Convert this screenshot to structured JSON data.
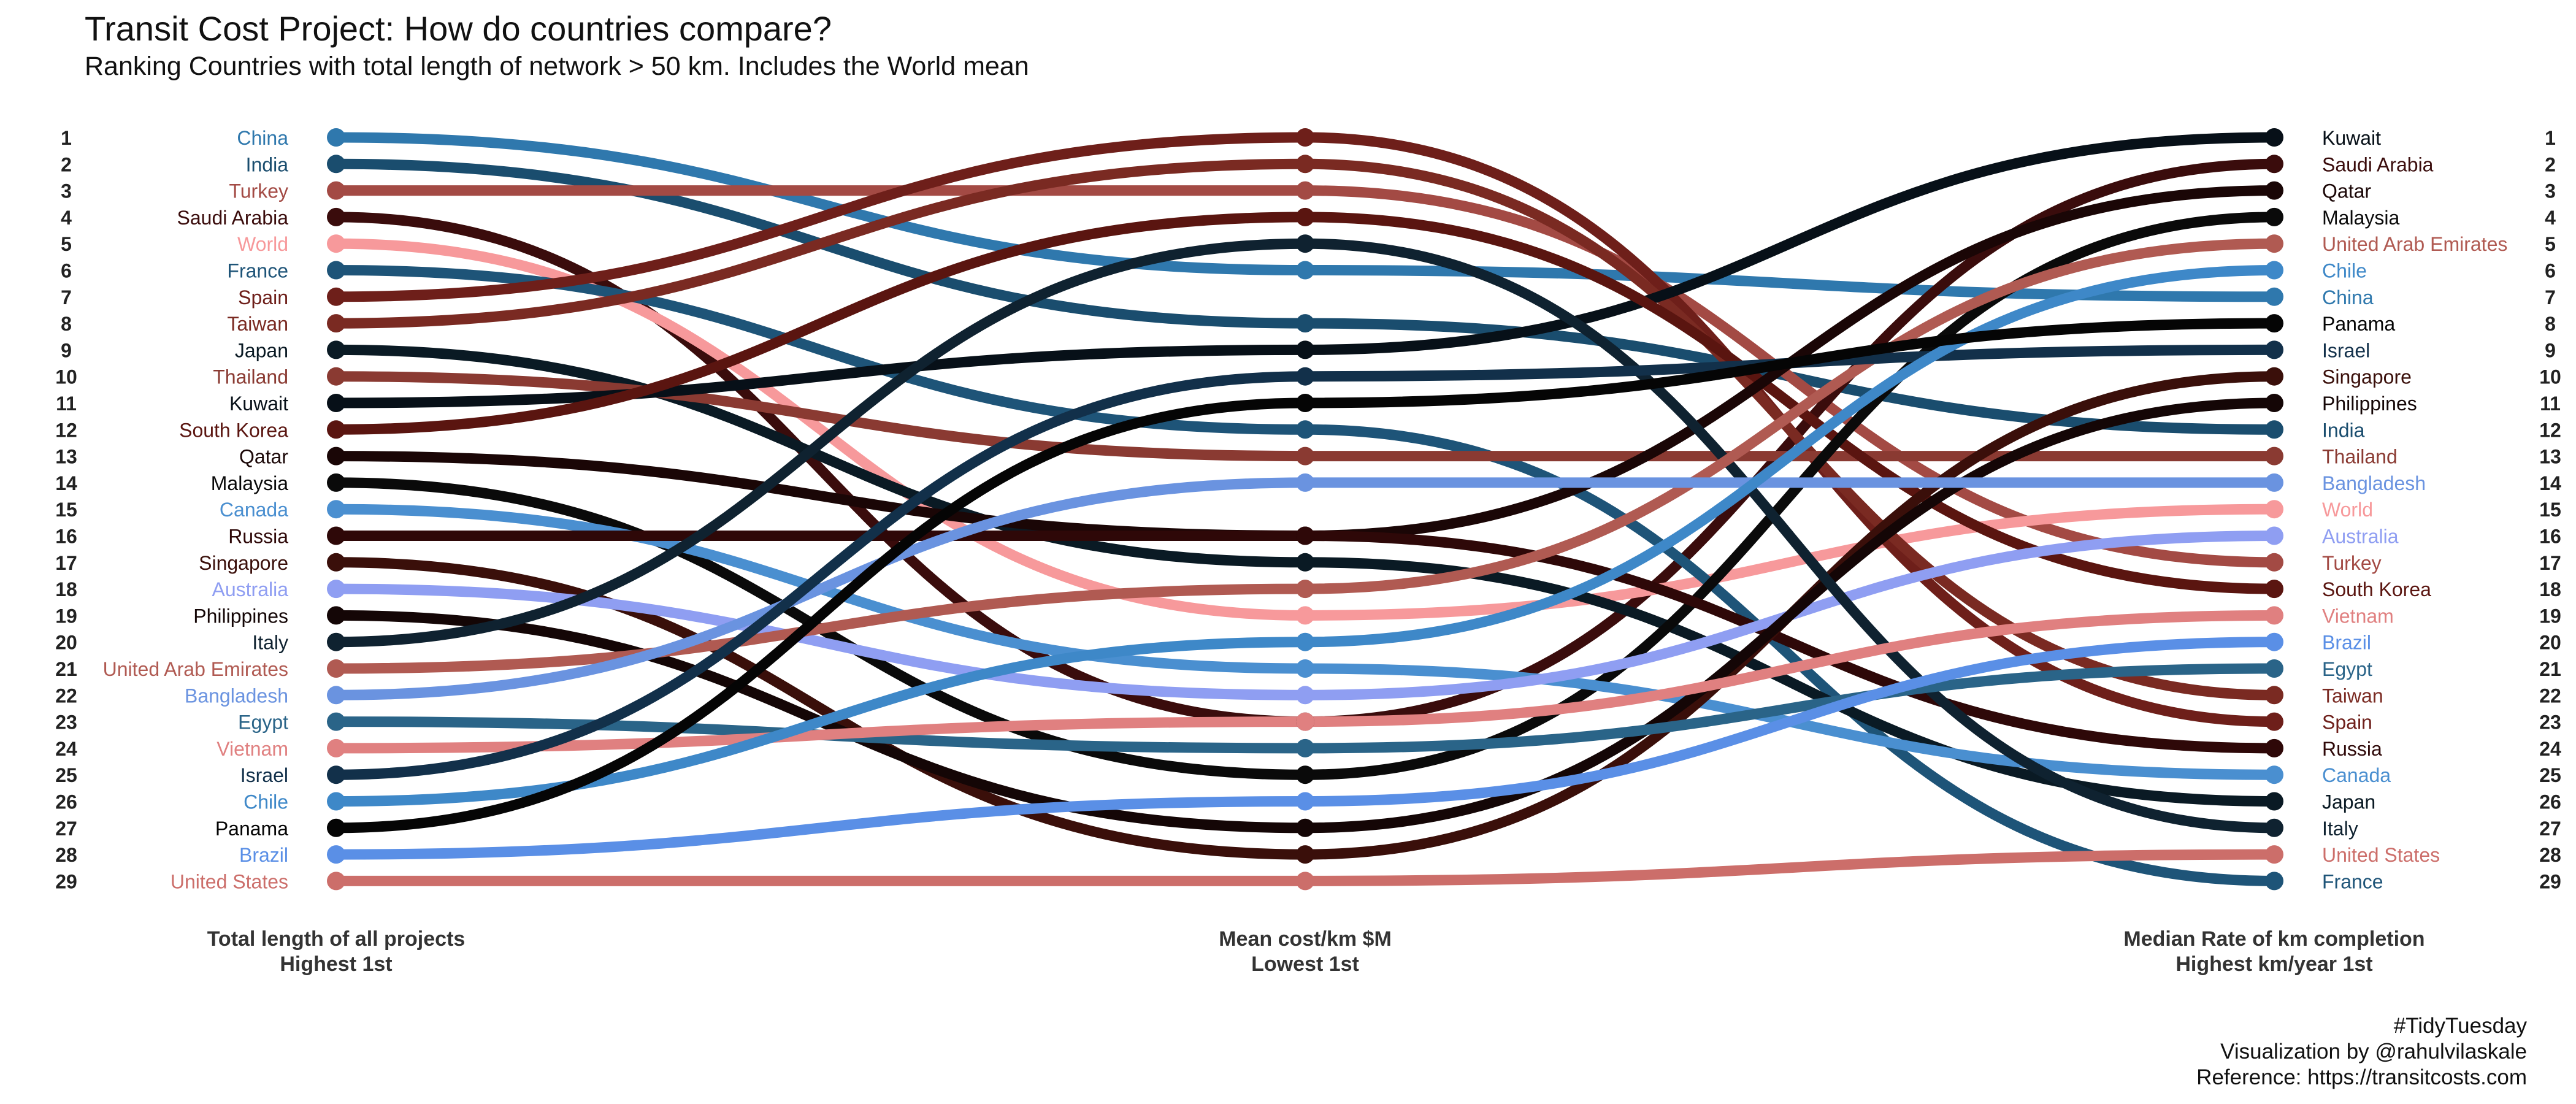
{
  "title": "Transit Cost Project: How do countries compare?",
  "subtitle": "Ranking Countries with total length of network > 50 km. Includes the World mean",
  "caption": [
    "#TidyTuesday",
    "Visualization by @rahulvilaskale",
    "Reference: https://transitcosts.com"
  ],
  "chart_data": {
    "type": "bump",
    "axes": [
      {
        "label": "Total length of all projects",
        "sublabel": "Highest 1st"
      },
      {
        "label": "Mean cost/km $M",
        "sublabel": "Lowest 1st"
      },
      {
        "label": "Median Rate of km completion",
        "sublabel": "Highest km/year 1st"
      }
    ],
    "rank_numbers": [
      1,
      2,
      3,
      4,
      5,
      6,
      7,
      8,
      9,
      10,
      11,
      12,
      13,
      14,
      15,
      16,
      17,
      18,
      19,
      20,
      21,
      22,
      23,
      24,
      25,
      26,
      27,
      28,
      29
    ],
    "series": [
      {
        "name": "China",
        "color": "#2f78ad",
        "ranks": [
          1,
          6,
          7
        ]
      },
      {
        "name": "India",
        "color": "#1a4d6e",
        "ranks": [
          2,
          8,
          12
        ]
      },
      {
        "name": "Turkey",
        "color": "#a34a44",
        "ranks": [
          3,
          3,
          17
        ]
      },
      {
        "name": "Saudi Arabia",
        "color": "#3a0c0c",
        "ranks": [
          4,
          23,
          2
        ]
      },
      {
        "name": "World",
        "color": "#f7999b",
        "ranks": [
          5,
          19,
          15
        ]
      },
      {
        "name": "France",
        "color": "#1e5478",
        "ranks": [
          6,
          12,
          29
        ]
      },
      {
        "name": "Spain",
        "color": "#6e1f1a",
        "ranks": [
          7,
          1,
          23
        ]
      },
      {
        "name": "Taiwan",
        "color": "#7a2a22",
        "ranks": [
          8,
          2,
          22
        ]
      },
      {
        "name": "Japan",
        "color": "#0a1a24",
        "ranks": [
          9,
          17,
          26
        ]
      },
      {
        "name": "Thailand",
        "color": "#8a3a32",
        "ranks": [
          10,
          13,
          13
        ]
      },
      {
        "name": "Kuwait",
        "color": "#071018",
        "ranks": [
          11,
          9,
          1
        ]
      },
      {
        "name": "South Korea",
        "color": "#5a1510",
        "ranks": [
          12,
          4,
          18
        ]
      },
      {
        "name": "Qatar",
        "color": "#1a0606",
        "ranks": [
          13,
          16,
          3
        ]
      },
      {
        "name": "Malaysia",
        "color": "#0a0a0a",
        "ranks": [
          14,
          25,
          4
        ]
      },
      {
        "name": "Canada",
        "color": "#4a8fd0",
        "ranks": [
          15,
          21,
          25
        ]
      },
      {
        "name": "Russia",
        "color": "#2e0808",
        "ranks": [
          16,
          16,
          24
        ]
      },
      {
        "name": "Singapore",
        "color": "#3a0f0a",
        "ranks": [
          17,
          28,
          10
        ]
      },
      {
        "name": "Australia",
        "color": "#8f9ef2",
        "ranks": [
          18,
          22,
          16
        ]
      },
      {
        "name": "Philippines",
        "color": "#140606",
        "ranks": [
          19,
          27,
          11
        ]
      },
      {
        "name": "Italy",
        "color": "#0f2230",
        "ranks": [
          20,
          5,
          27
        ]
      },
      {
        "name": "United Arab Emirates",
        "color": "#b05a52",
        "ranks": [
          21,
          18,
          5
        ]
      },
      {
        "name": "Bangladesh",
        "color": "#6a93e0",
        "ranks": [
          22,
          14,
          14
        ]
      },
      {
        "name": "Egypt",
        "color": "#2a6488",
        "ranks": [
          23,
          24,
          21
        ]
      },
      {
        "name": "Vietnam",
        "color": "#e08080",
        "ranks": [
          24,
          23,
          19
        ]
      },
      {
        "name": "Israel",
        "color": "#12304a",
        "ranks": [
          25,
          10,
          9
        ]
      },
      {
        "name": "Chile",
        "color": "#3e88c8",
        "ranks": [
          26,
          20,
          6
        ]
      },
      {
        "name": "Panama",
        "color": "#050505",
        "ranks": [
          27,
          11,
          8
        ]
      },
      {
        "name": "Brazil",
        "color": "#5a8fe6",
        "ranks": [
          28,
          26,
          20
        ]
      },
      {
        "name": "United States",
        "color": "#cc6e6a",
        "ranks": [
          29,
          29,
          28
        ]
      }
    ]
  }
}
